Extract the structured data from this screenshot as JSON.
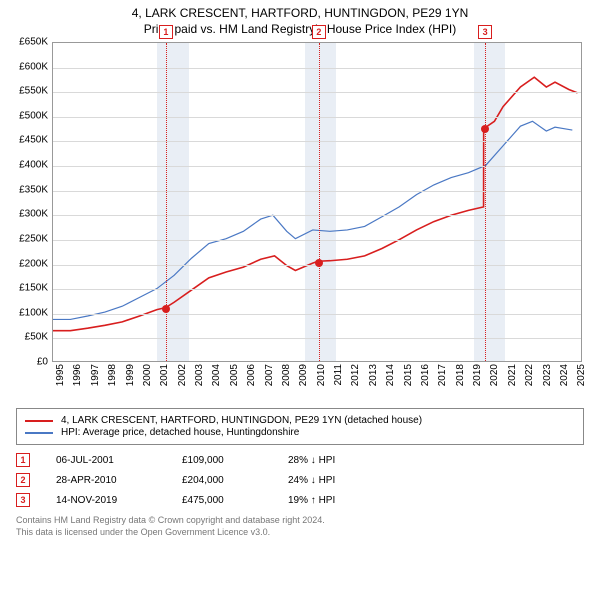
{
  "title_line1": "4, LARK CRESCENT, HARTFORD, HUNTINGDON, PE29 1YN",
  "title_line2": "Price paid vs. HM Land Registry's House Price Index (HPI)",
  "chart": {
    "type": "line",
    "x_min": 1995,
    "x_max": 2025.5,
    "y_min": 0,
    "y_max": 650000,
    "y_tick_step": 50000,
    "y_tick_prefix": "£",
    "y_tick_suffix": "K",
    "x_ticks": [
      1995,
      1996,
      1997,
      1998,
      1999,
      2000,
      2001,
      2002,
      2003,
      2004,
      2005,
      2006,
      2007,
      2008,
      2009,
      2010,
      2011,
      2012,
      2013,
      2014,
      2015,
      2016,
      2017,
      2018,
      2019,
      2020,
      2021,
      2022,
      2023,
      2024,
      2025
    ],
    "grid_color": "#d9d9d9",
    "band_color": "#e9eef5",
    "plot_border": "#999999",
    "background_color": "#ffffff",
    "bands": [
      {
        "start": 2001.0,
        "end": 2002.8
      },
      {
        "start": 2009.5,
        "end": 2011.3
      },
      {
        "start": 2019.2,
        "end": 2021.0
      }
    ],
    "series_property": {
      "label": "4, LARK CRESCENT, HARTFORD, HUNTINGDON, PE29 1YN (detached house)",
      "color": "#d81e1e",
      "line_width": 1.6,
      "points": [
        [
          1995,
          62000
        ],
        [
          1996,
          62000
        ],
        [
          1997,
          67000
        ],
        [
          1998,
          73000
        ],
        [
          1999,
          80000
        ],
        [
          2000,
          92000
        ],
        [
          2001,
          105000
        ],
        [
          2001.5,
          109000
        ],
        [
          2002,
          120000
        ],
        [
          2003,
          145000
        ],
        [
          2004,
          170000
        ],
        [
          2005,
          182000
        ],
        [
          2006,
          192000
        ],
        [
          2007,
          208000
        ],
        [
          2007.8,
          215000
        ],
        [
          2008.5,
          195000
        ],
        [
          2009,
          185000
        ],
        [
          2010,
          200000
        ],
        [
          2010.3,
          204000
        ],
        [
          2011,
          205000
        ],
        [
          2012,
          208000
        ],
        [
          2013,
          215000
        ],
        [
          2014,
          230000
        ],
        [
          2015,
          248000
        ],
        [
          2016,
          268000
        ],
        [
          2017,
          285000
        ],
        [
          2018,
          298000
        ],
        [
          2019,
          308000
        ],
        [
          2019.87,
          315000
        ],
        [
          2019.88,
          475000
        ],
        [
          2020.5,
          490000
        ],
        [
          2021,
          520000
        ],
        [
          2022,
          560000
        ],
        [
          2022.8,
          580000
        ],
        [
          2023.5,
          560000
        ],
        [
          2024,
          570000
        ],
        [
          2024.8,
          555000
        ],
        [
          2025.3,
          548000
        ]
      ]
    },
    "series_hpi": {
      "label": "HPI: Average price, detached house, Huntingdonshire",
      "color": "#4a78c4",
      "line_width": 1.2,
      "points": [
        [
          1995,
          85000
        ],
        [
          1996,
          85000
        ],
        [
          1997,
          92000
        ],
        [
          1998,
          100000
        ],
        [
          1999,
          112000
        ],
        [
          2000,
          130000
        ],
        [
          2001,
          148000
        ],
        [
          2002,
          175000
        ],
        [
          2003,
          210000
        ],
        [
          2004,
          240000
        ],
        [
          2005,
          250000
        ],
        [
          2006,
          265000
        ],
        [
          2007,
          290000
        ],
        [
          2007.7,
          298000
        ],
        [
          2008.5,
          265000
        ],
        [
          2009,
          250000
        ],
        [
          2010,
          268000
        ],
        [
          2011,
          265000
        ],
        [
          2012,
          268000
        ],
        [
          2013,
          275000
        ],
        [
          2014,
          295000
        ],
        [
          2015,
          315000
        ],
        [
          2016,
          340000
        ],
        [
          2017,
          360000
        ],
        [
          2018,
          375000
        ],
        [
          2019,
          385000
        ],
        [
          2020,
          400000
        ],
        [
          2021,
          440000
        ],
        [
          2022,
          480000
        ],
        [
          2022.7,
          490000
        ],
        [
          2023.5,
          470000
        ],
        [
          2024,
          478000
        ],
        [
          2025,
          472000
        ]
      ]
    },
    "markers": [
      {
        "n": "1",
        "x": 2001.5,
        "y": 109000,
        "line_color": "#d81e1e"
      },
      {
        "n": "2",
        "x": 2010.3,
        "y": 204000,
        "line_color": "#d81e1e"
      },
      {
        "n": "3",
        "x": 2019.87,
        "y": 475000,
        "line_color": "#d81e1e"
      }
    ],
    "marker_box_color": "#d81e1e",
    "dot_color": "#d81e1e"
  },
  "legend": {
    "items": [
      {
        "color": "#d81e1e",
        "label": "4, LARK CRESCENT, HARTFORD, HUNTINGDON, PE29 1YN (detached house)"
      },
      {
        "color": "#4a78c4",
        "label": "HPI: Average price, detached house, Huntingdonshire"
      }
    ]
  },
  "sales": [
    {
      "n": "1",
      "date": "06-JUL-2001",
      "price": "£109,000",
      "diff": "28% ↓ HPI"
    },
    {
      "n": "2",
      "date": "28-APR-2010",
      "price": "£204,000",
      "diff": "24% ↓ HPI"
    },
    {
      "n": "3",
      "date": "14-NOV-2019",
      "price": "£475,000",
      "diff": "19% ↑ HPI"
    }
  ],
  "footer_line1": "Contains HM Land Registry data © Crown copyright and database right 2024.",
  "footer_line2": "This data is licensed under the Open Government Licence v3.0."
}
